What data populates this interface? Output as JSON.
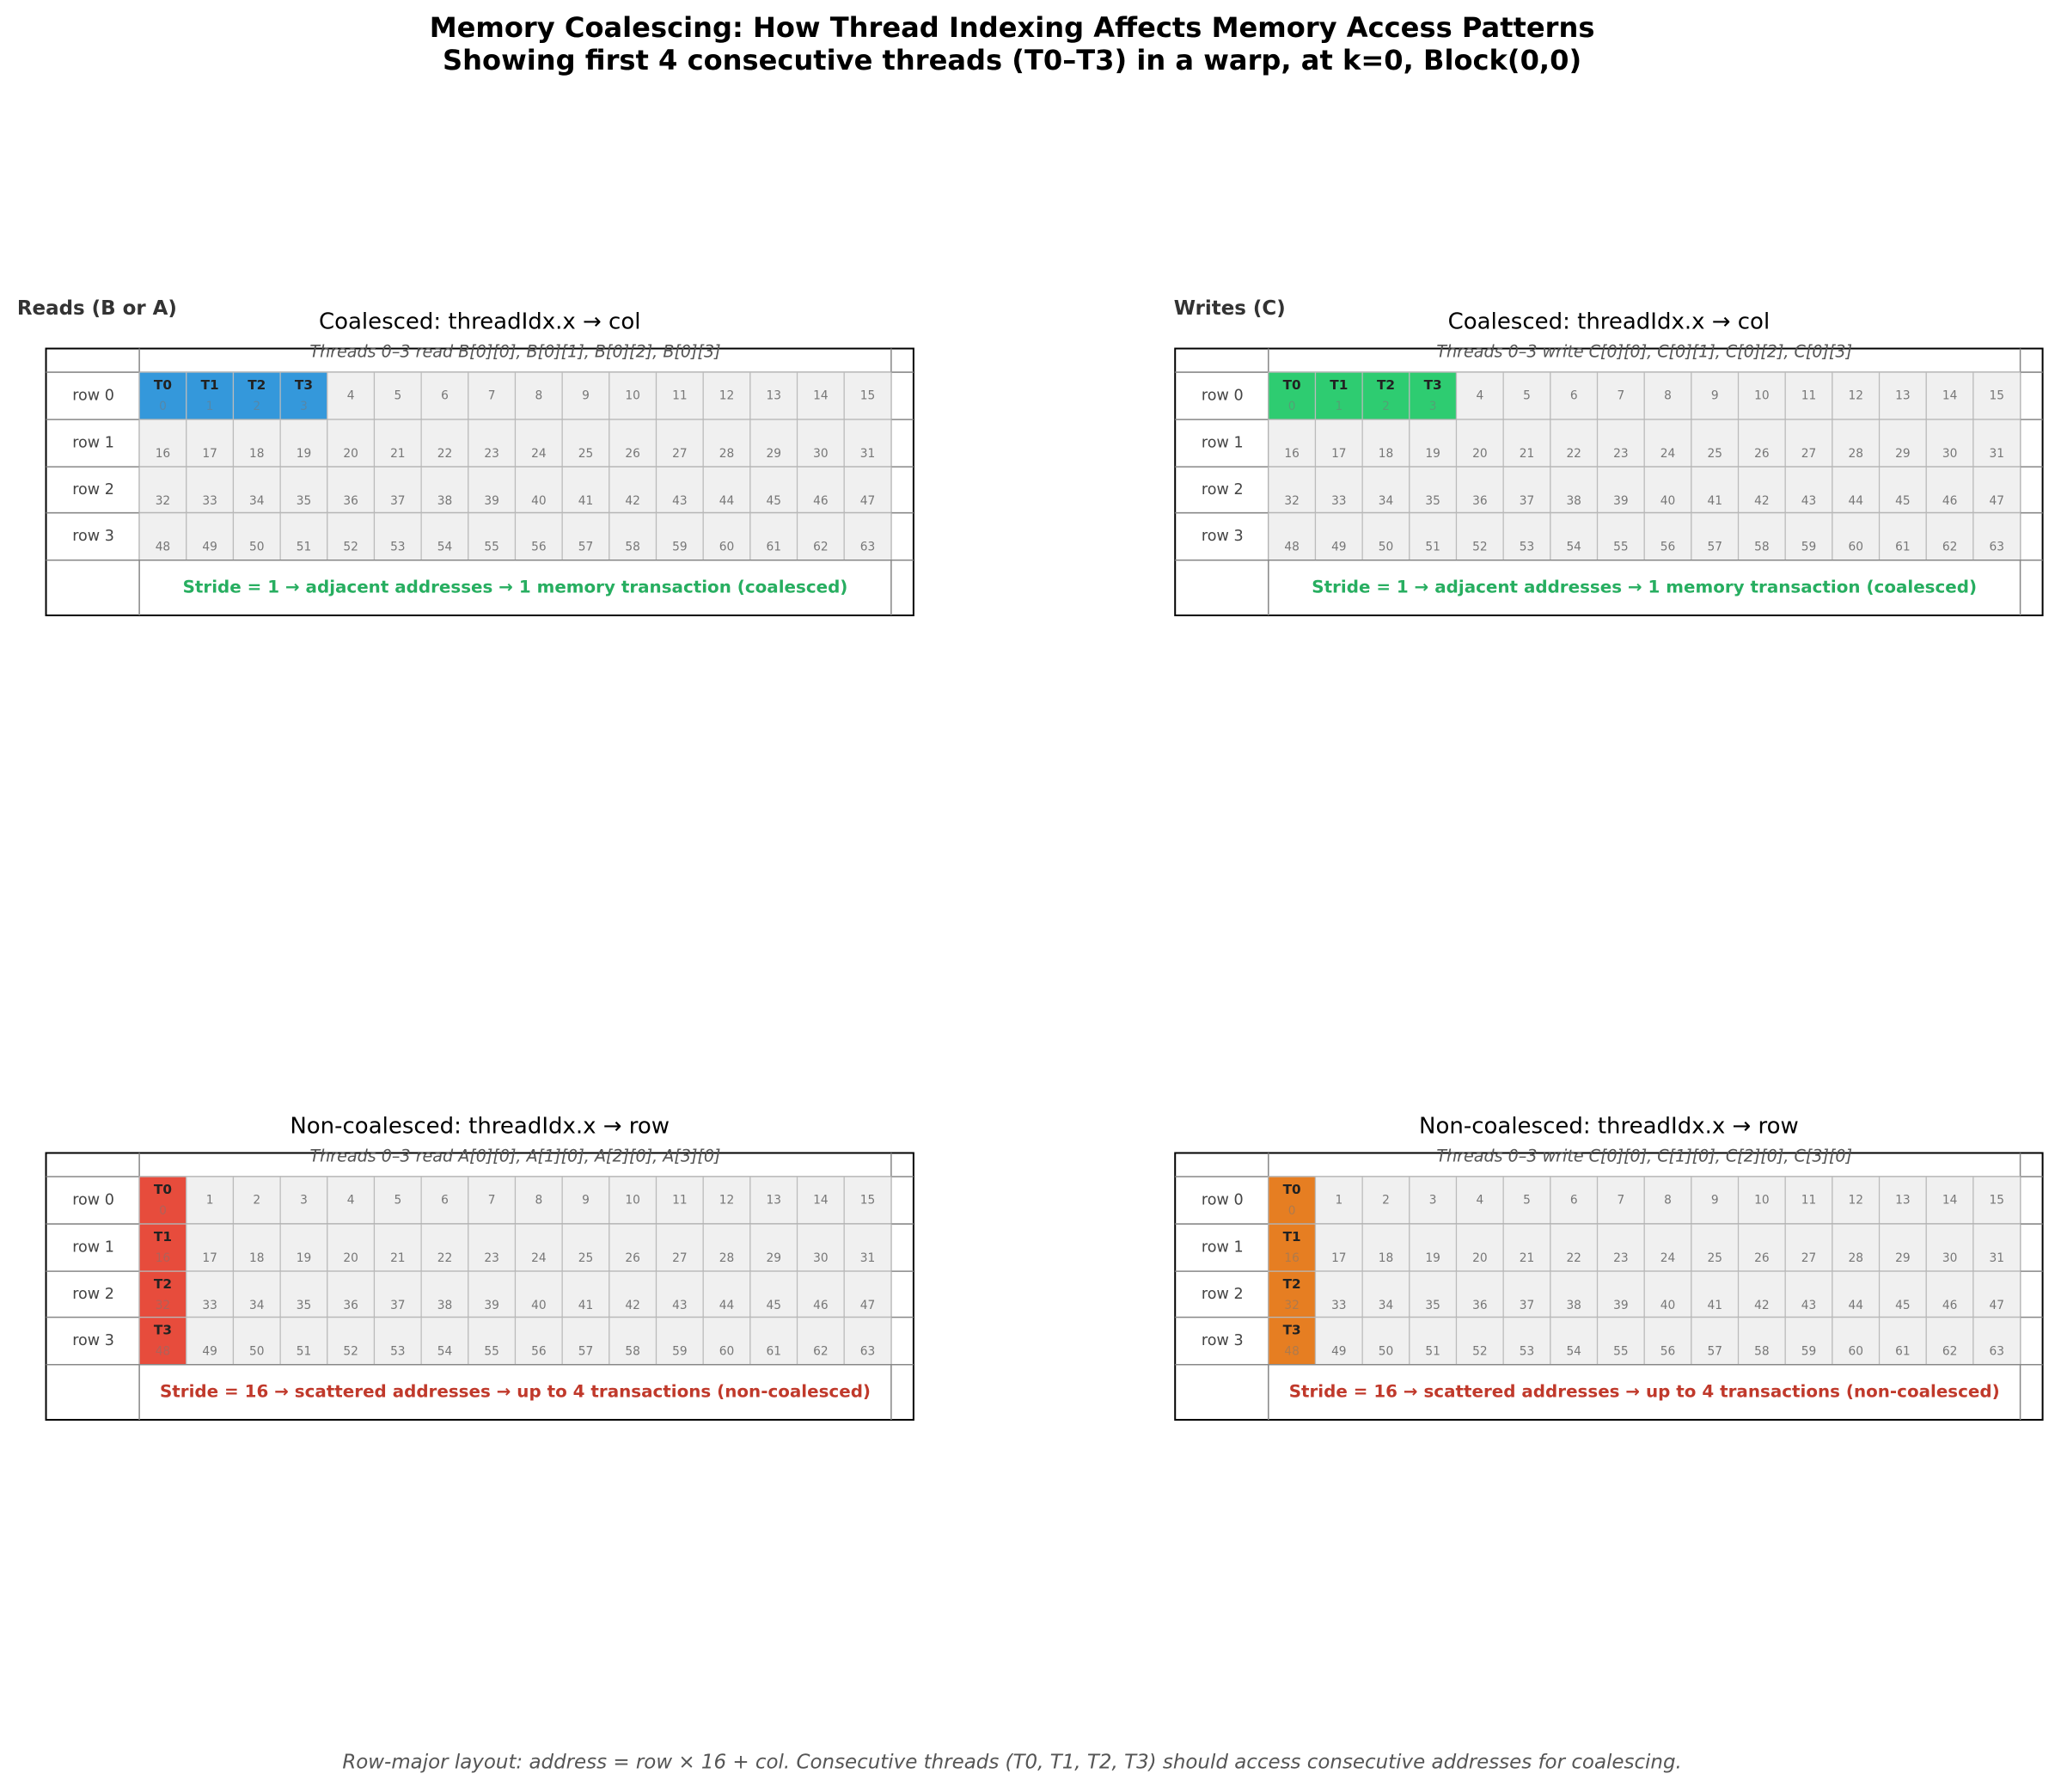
{
  "title": "Memory Coalescing: How Thread Indexing Affects Memory Access Patterns",
  "subtitle": "Showing first 4 consecutive threads (T0–T3) in a warp, at k=0, Block(0,0)",
  "column_labels": [
    "Reads (B or A)",
    "Writes (C)"
  ],
  "row_labels": [
    "row 0",
    "row 1",
    "row 2",
    "row 3"
  ],
  "addresses": [
    0,
    1,
    2,
    3,
    4,
    5,
    6,
    7,
    8,
    9,
    10,
    11,
    12,
    13,
    14,
    15,
    16,
    17,
    18,
    19,
    20,
    21,
    22,
    23,
    24,
    25,
    26,
    27,
    28,
    29,
    30,
    31,
    32,
    33,
    34,
    35,
    36,
    37,
    38,
    39,
    40,
    41,
    42,
    43,
    44,
    45,
    46,
    47,
    48,
    49,
    50,
    51,
    52,
    53,
    54,
    55,
    56,
    57,
    58,
    59,
    60,
    61,
    62,
    63
  ],
  "threads": [
    "T0",
    "T1",
    "T2",
    "T3"
  ],
  "panels": [
    {
      "title": "Coalesced: threadIdx.x → col",
      "caption": "Threads 0–3 read B[0][0], B[0][1], B[0][2], B[0][3]",
      "accessed": [
        0,
        1,
        2,
        3
      ],
      "color": "#3498db",
      "note": "Stride = 1 → adjacent addresses → 1 memory transaction (coalesced)",
      "note_color": "#27ae60"
    },
    {
      "title": "Coalesced: threadIdx.x → col",
      "caption": "Threads 0–3 write C[0][0], C[0][1], C[0][2], C[0][3]",
      "accessed": [
        0,
        1,
        2,
        3
      ],
      "color": "#2ecc71",
      "note": "Stride = 1 → adjacent addresses → 1 memory transaction (coalesced)",
      "note_color": "#27ae60"
    },
    {
      "title": "Non-coalesced: threadIdx.x → row",
      "caption": "Threads 0–3 read A[0][0], A[1][0], A[2][0], A[3][0]",
      "accessed": [
        0,
        16,
        32,
        48
      ],
      "color": "#e74c3c",
      "note": "Stride = 16 → scattered addresses → up to 4 transactions (non-coalesced)",
      "note_color": "#c0392b"
    },
    {
      "title": "Non-coalesced: threadIdx.x → row",
      "caption": "Threads 0–3 write C[0][0], C[1][0], C[2][0], C[3][0]",
      "accessed": [
        0,
        16,
        32,
        48
      ],
      "color": "#e67e22",
      "note": "Stride = 16 → scattered addresses → up to 4 transactions (non-coalesced)",
      "note_color": "#c0392b"
    }
  ],
  "footer": "Row-major layout: address = row × 16 + col.  Consecutive threads (T0, T1, T2, T3) should access consecutive addresses for coalescing."
}
